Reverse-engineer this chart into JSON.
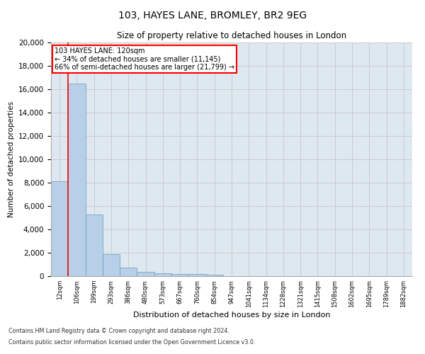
{
  "title_line1": "103, HAYES LANE, BROMLEY, BR2 9EG",
  "title_line2": "Size of property relative to detached houses in London",
  "xlabel": "Distribution of detached houses by size in London",
  "ylabel": "Number of detached properties",
  "categories": [
    "12sqm",
    "106sqm",
    "199sqm",
    "293sqm",
    "386sqm",
    "480sqm",
    "573sqm",
    "667sqm",
    "760sqm",
    "854sqm",
    "947sqm",
    "1041sqm",
    "1134sqm",
    "1228sqm",
    "1321sqm",
    "1415sqm",
    "1508sqm",
    "1602sqm",
    "1695sqm",
    "1789sqm",
    "1882sqm"
  ],
  "values": [
    8100,
    16500,
    5300,
    1850,
    700,
    350,
    270,
    200,
    170,
    130,
    0,
    0,
    0,
    0,
    0,
    0,
    0,
    0,
    0,
    0,
    0
  ],
  "bar_color": "#b8cfe8",
  "bar_edge_color": "#6699bb",
  "vline_color": "red",
  "vline_x": 0.5,
  "annotation_text": "103 HAYES LANE: 120sqm\n← 34% of detached houses are smaller (11,145)\n66% of semi-detached houses are larger (21,799) →",
  "annotation_box_color": "white",
  "annotation_box_edge_color": "red",
  "ylim": [
    0,
    20000
  ],
  "yticks": [
    0,
    2000,
    4000,
    6000,
    8000,
    10000,
    12000,
    14000,
    16000,
    18000,
    20000
  ],
  "grid_color": "#cccccc",
  "bg_color": "#dde8f0",
  "footer_line1": "Contains HM Land Registry data © Crown copyright and database right 2024.",
  "footer_line2": "Contains public sector information licensed under the Open Government Licence v3.0."
}
